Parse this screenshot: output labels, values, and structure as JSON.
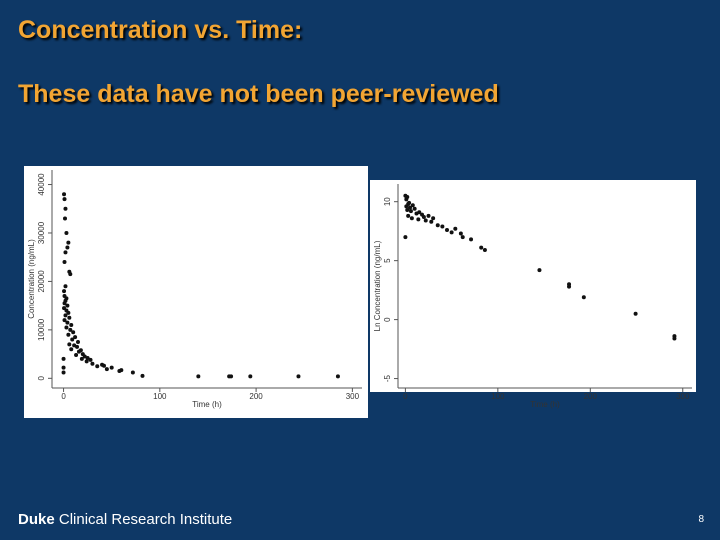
{
  "slide": {
    "title": "Concentration vs. Time:",
    "subtitle": "These data have not been peer-reviewed",
    "footer_brand": "Duke",
    "footer_text": "Clinical Research Institute",
    "page_number": 8
  },
  "chart_data": [
    {
      "type": "scatter",
      "x_label": "Time (h)",
      "y_label": "Concentration (ng/mL)",
      "color": "#111111",
      "xlim": [
        -12,
        310
      ],
      "ylim": [
        -2000,
        43000
      ],
      "xticks": [
        0,
        100,
        200,
        300
      ],
      "yticks": [
        0,
        10000,
        20000,
        30000,
        40000
      ],
      "x": [
        0.5,
        1,
        2,
        1.5,
        3,
        5,
        4,
        2,
        6,
        7,
        1,
        2,
        0.5,
        1,
        3,
        2,
        1,
        4,
        0.5,
        3,
        5,
        2,
        6,
        1,
        4,
        8,
        3,
        7,
        10,
        5,
        12,
        9,
        15,
        6,
        11,
        14,
        8,
        18,
        16,
        20,
        13,
        22,
        25,
        19,
        28,
        24,
        30,
        0,
        0,
        0,
        35,
        40,
        42,
        45,
        50,
        58,
        60,
        72,
        82,
        140,
        172,
        174,
        194,
        244,
        285
      ],
      "y": [
        38000,
        37000,
        35000,
        33000,
        30000,
        28000,
        27000,
        26000,
        22000,
        21500,
        24000,
        19000,
        18000,
        17000,
        16500,
        16000,
        15500,
        15000,
        14500,
        14000,
        13500,
        13000,
        12500,
        12000,
        11500,
        11000,
        10500,
        10000,
        9500,
        9000,
        8500,
        8000,
        7500,
        7000,
        6800,
        6500,
        6000,
        5800,
        5500,
        5000,
        4800,
        4500,
        4200,
        4000,
        3800,
        3500,
        3000,
        4000,
        2200,
        1200,
        2500,
        2800,
        2600,
        1900,
        2200,
        1500,
        1700,
        1200,
        500,
        400,
        400,
        400,
        400,
        400,
        400
      ]
    },
    {
      "type": "scatter",
      "x_label": "Time (h)",
      "y_label": "Ln Concentration (ng/mL)",
      "color": "#111111",
      "xlim": [
        -8,
        310
      ],
      "ylim": [
        -5.8,
        11.5
      ],
      "xticks": [
        0,
        100,
        200,
        300
      ],
      "yticks": [
        -5,
        0,
        5,
        10
      ],
      "x": [
        0,
        1,
        2,
        3,
        1,
        2,
        4,
        5,
        6,
        8,
        10,
        12,
        3,
        7,
        15,
        18,
        20,
        14,
        22,
        25,
        28,
        30,
        35,
        40,
        0,
        45,
        50,
        54,
        60,
        62,
        71,
        82,
        86,
        145,
        177,
        177,
        193,
        249,
        291,
        291
      ],
      "y": [
        10.5,
        10.2,
        10.4,
        9.8,
        9.6,
        9.3,
        9.9,
        9.5,
        9.2,
        9.7,
        9.4,
        9.0,
        8.8,
        8.6,
        9.1,
        8.9,
        8.7,
        8.5,
        8.4,
        8.8,
        8.3,
        8.6,
        8.0,
        7.9,
        7.0,
        7.6,
        7.4,
        7.7,
        7.3,
        7.0,
        6.8,
        6.1,
        5.9,
        4.2,
        3.0,
        2.8,
        1.9,
        0.5,
        -1.4,
        -1.6
      ]
    }
  ]
}
